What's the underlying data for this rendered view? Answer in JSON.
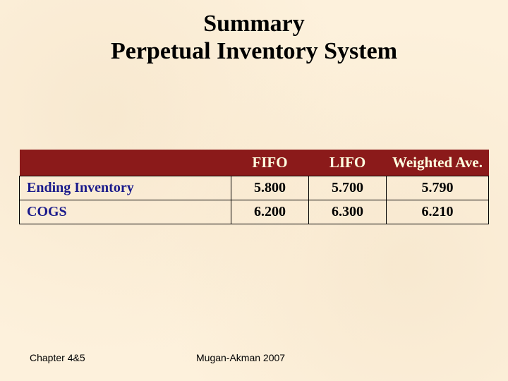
{
  "title_line1": "Summary",
  "title_line2": "Perpetual Inventory System",
  "table": {
    "columns": [
      "",
      "FIFO",
      "LIFO",
      "Weighted Ave."
    ],
    "rows": [
      {
        "label": "Ending Inventory",
        "fifo": "5.800",
        "lifo": "5.700",
        "wavg": "5.790"
      },
      {
        "label": "COGS",
        "fifo": "6.200",
        "lifo": "6.300",
        "wavg": "6.210"
      }
    ],
    "header_bg": "#8b1a1a",
    "header_fg": "#ffffe0",
    "label_color": "#1a1a8b",
    "value_color": "#000000",
    "border_color": "#000000",
    "background_color": "#fdf1dc"
  },
  "footer": {
    "left": "Chapter 4&5",
    "center": "Mugan-Akman 2007"
  }
}
